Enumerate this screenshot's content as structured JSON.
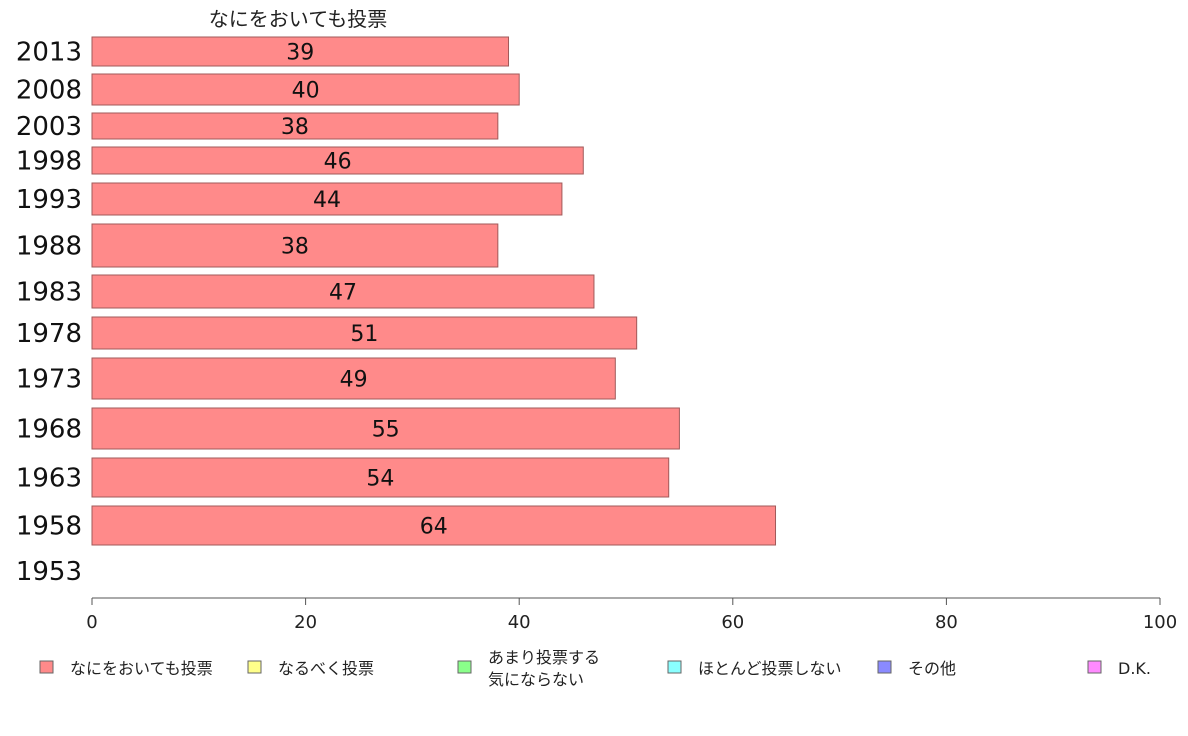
{
  "chart_data": {
    "type": "bar",
    "orientation": "horizontal",
    "stacked": true,
    "series_title": "なにをおいても投票",
    "categories": [
      "2013",
      "2008",
      "2003",
      "1998",
      "1993",
      "1988",
      "1983",
      "1978",
      "1973",
      "1968",
      "1963",
      "1958",
      "1953"
    ],
    "series": [
      {
        "name": "なにをおいても投票",
        "color": "#ff8a8a",
        "values": [
          39,
          40,
          38,
          46,
          44,
          38,
          47,
          51,
          49,
          55,
          54,
          64,
          null
        ]
      }
    ],
    "xlim": [
      0,
      100
    ],
    "xticks": [
      "0",
      "20",
      "40",
      "60",
      "80",
      "100"
    ],
    "legend": {
      "placement": "bottom",
      "items": [
        {
          "label": "なにをおいても投票",
          "color": "#ff8a8a"
        },
        {
          "label": "なるべく投票",
          "color": "#ffff8a"
        },
        {
          "label": "あまり投票する",
          "label2": "気にならない",
          "color": "#8aff8a"
        },
        {
          "label": "ほとんど投票しない",
          "color": "#8affff"
        },
        {
          "label": "その他",
          "color": "#8a8aff"
        },
        {
          "label": "D.K.",
          "color": "#ff8aff"
        }
      ]
    }
  }
}
